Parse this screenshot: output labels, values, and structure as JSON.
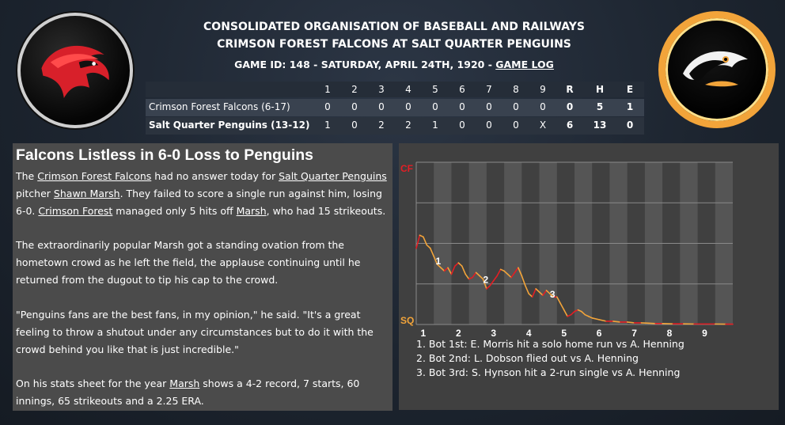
{
  "header": {
    "league": "CONSOLIDATED ORGANISATION OF BASEBALL AND RAILWAYS",
    "matchup": "CRIMSON FOREST FALCONS AT SALT QUARTER PENGUINS",
    "game_info": "GAME ID: 148 - SATURDAY, APRIL 24TH, 1920 -",
    "game_log_link": "GAME LOG"
  },
  "colors": {
    "away_accent": "#e31e24",
    "home_accent": "#f2a43a",
    "article_bg": "#4b4b4b",
    "chart_bg": "#404040"
  },
  "logos": {
    "away": "falcon-logo",
    "home": "penguin-logo"
  },
  "linescore": {
    "headers": [
      "1",
      "2",
      "3",
      "4",
      "5",
      "6",
      "7",
      "8",
      "9",
      "R",
      "H",
      "E"
    ],
    "away": {
      "team": "Crimson Forest Falcons (6-17)",
      "cells": [
        "0",
        "0",
        "0",
        "0",
        "0",
        "0",
        "0",
        "0",
        "0",
        "0",
        "5",
        "1"
      ]
    },
    "home": {
      "team": "Salt Quarter Penguins (13-12)",
      "cells": [
        "1",
        "0",
        "2",
        "2",
        "1",
        "0",
        "0",
        "0",
        "X",
        "6",
        "13",
        "0"
      ]
    }
  },
  "article": {
    "title": "Falcons Listless in 6-0 Loss to Penguins",
    "p1": [
      {
        "t": "The "
      },
      {
        "t": "Crimson Forest Falcons",
        "link": true
      },
      {
        "t": " had no answer today for "
      },
      {
        "t": "Salt Quarter Penguins",
        "link": true
      },
      {
        "t": " pitcher "
      },
      {
        "t": "Shawn Marsh",
        "link": true
      },
      {
        "t": ". They failed to score a single run against him, losing 6-0. "
      },
      {
        "t": "Crimson Forest",
        "link": true
      },
      {
        "t": " managed only 5 hits off "
      },
      {
        "t": "Marsh",
        "link": true
      },
      {
        "t": ", who had 15 strikeouts."
      }
    ],
    "p2": "The extraordinarily popular Marsh got a standing ovation from the hometown crowd as he left the field, the applause continuing until he returned from the dugout to tip his cap to the crowd.",
    "p3": "\"Penguins fans are the best fans, in my opinion,\" he said. \"It's a great feeling to throw a shutout under any circumstances but to do it with the crowd behind you like that is just incredible.\"",
    "p4": [
      {
        "t": "On his stats sheet for the year "
      },
      {
        "t": "Marsh",
        "link": true
      },
      {
        "t": " shows a 4-2 record, 7 starts, 60 innings, 65 strikeouts and a 2.25 ERA."
      }
    ]
  },
  "chart_data": {
    "type": "line",
    "top_label": "CF",
    "bottom_label": "SQ",
    "x_ticks": [
      "1",
      "2",
      "3",
      "4",
      "5",
      "6",
      "7",
      "8",
      "9"
    ],
    "ylim": [
      0,
      1
    ],
    "grid": true,
    "colors": {
      "away": "#e31e24",
      "home": "#f2a43a"
    },
    "x": [
      0,
      0.1,
      0.2,
      0.3,
      0.4,
      0.5,
      0.6,
      0.7,
      0.8,
      0.9,
      1.0,
      1.1,
      1.2,
      1.3,
      1.4,
      1.5,
      1.6,
      1.7,
      1.8,
      1.9,
      2.0,
      2.1,
      2.2,
      2.3,
      2.4,
      2.5,
      2.6,
      2.7,
      2.8,
      2.9,
      3.0,
      3.1,
      3.2,
      3.3,
      3.4,
      3.5,
      3.6,
      3.7,
      3.8,
      3.9,
      4.0,
      4.1,
      4.2,
      4.3,
      4.4,
      4.5,
      4.6,
      4.7,
      4.8,
      4.9,
      5.0,
      5.2,
      5.4,
      5.6,
      5.8,
      6.0,
      6.2,
      6.4,
      6.6,
      6.8,
      7.0,
      7.3,
      7.6,
      7.9,
      8.2,
      8.5,
      8.8,
      9.0
    ],
    "series": [
      {
        "values": [
          0.47,
          0.55,
          0.54,
          0.49,
          0.47,
          0.42,
          0.37,
          0.35,
          0.33,
          0.35,
          0.31,
          0.36,
          0.38,
          0.36,
          0.31,
          0.28,
          0.29,
          0.32,
          0.3,
          0.28,
          0.22,
          0.24,
          0.27,
          0.3,
          0.34,
          0.33,
          0.31,
          0.29,
          0.32,
          0.35,
          0.3,
          0.24,
          0.19,
          0.17,
          0.22,
          0.2,
          0.18,
          0.21,
          0.19,
          0.17,
          0.17,
          0.13,
          0.09,
          0.05,
          0.06,
          0.08,
          0.09,
          0.08,
          0.06,
          0.05,
          0.04,
          0.03,
          0.02,
          0.02,
          0.015,
          0.015,
          0.01,
          0.01,
          0.008,
          0.006,
          0.006,
          0.004,
          0.004,
          0.003,
          0.003,
          0.003,
          0.002,
          0.002
        ]
      }
    ],
    "annotations": [
      {
        "label": "1",
        "x": 0.55
      },
      {
        "label": "2",
        "x": 1.9
      },
      {
        "label": "3",
        "x": 3.8
      }
    ]
  },
  "plays": [
    "1. Bot 1st: E. Morris hit a solo home run vs A. Henning",
    "2. Bot 2nd: L. Dobson flied out vs A. Henning",
    "3. Bot 3rd: S. Hynson hit a 2-run single vs A. Henning"
  ]
}
